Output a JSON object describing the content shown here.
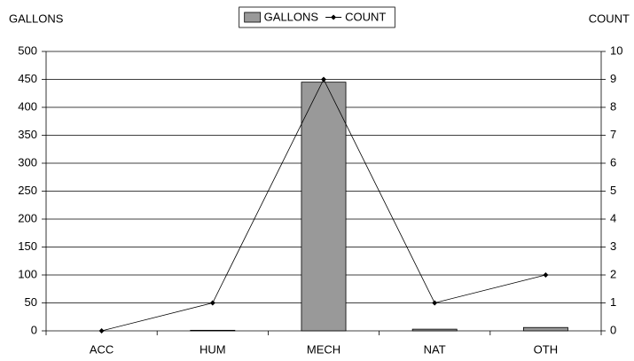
{
  "chart_data": {
    "type": "bar",
    "categories": [
      "ACC",
      "HUM",
      "MECH",
      "NAT",
      "OTH"
    ],
    "y_axis_label": "GALLONS",
    "y2_axis_label": "COUNT",
    "series": [
      {
        "name": "GALLONS",
        "type": "bar",
        "color": "#999999",
        "values": [
          0,
          1,
          445,
          3,
          6
        ]
      },
      {
        "name": "COUNT",
        "type": "line",
        "axis": "y2",
        "color": "#000000",
        "values": [
          0,
          1,
          9,
          1,
          2
        ]
      }
    ],
    "ylim": [
      0,
      500
    ],
    "yticks": [
      0,
      50,
      100,
      150,
      200,
      250,
      300,
      350,
      400,
      450,
      500
    ],
    "y2lim": [
      0,
      10
    ],
    "y2ticks": [
      0,
      1,
      2,
      3,
      4,
      5,
      6,
      7,
      8,
      9,
      10
    ],
    "grid": true,
    "legend": "top"
  }
}
